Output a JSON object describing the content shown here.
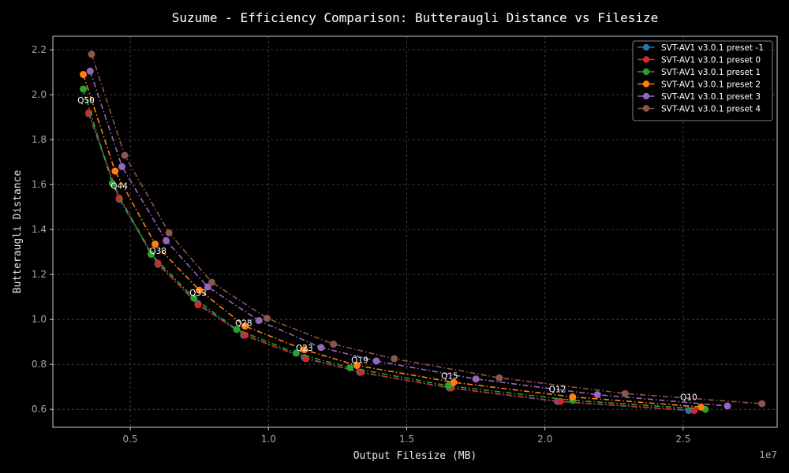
{
  "chart_data": {
    "type": "line",
    "title": "Suzume - Efficiency Comparison: Butteraugli Distance vs Filesize",
    "xlabel": "Output Filesize (MB)",
    "ylabel": "Butteraugli Distance",
    "x_offset_label": "1e7",
    "xlim": [
      2200000,
      28400000
    ],
    "ylim": [
      0.52,
      2.26
    ],
    "xticks": [
      5000000,
      10000000,
      15000000,
      20000000,
      25000000
    ],
    "xtick_labels": [
      "0.5",
      "1.0",
      "1.5",
      "2.0",
      "2.5"
    ],
    "yticks": [
      0.6,
      0.8,
      1.0,
      1.2,
      1.4,
      1.6,
      1.8,
      2.0,
      2.2
    ],
    "ytick_labels": [
      "0.6",
      "0.8",
      "1.0",
      "1.2",
      "1.4",
      "1.6",
      "1.8",
      "2.0",
      "2.2"
    ],
    "grid": true,
    "legend_position": "top-right",
    "series": [
      {
        "name": "SVT-AV1 v3.0.1 preset -1",
        "color": "#1f77b4",
        "x": [
          3500000,
          4600000,
          6000000,
          7450000,
          9100000,
          11300000,
          13300000,
          16550000,
          20450000,
          25200000
        ],
        "y": [
          1.915,
          1.535,
          1.245,
          1.07,
          0.93,
          0.83,
          0.765,
          0.695,
          0.635,
          0.595
        ]
      },
      {
        "name": "SVT-AV1 v3.0.1 preset 0",
        "color": "#d62728",
        "x": [
          3500000,
          4600000,
          6000000,
          7450000,
          9150000,
          11350000,
          13350000,
          16600000,
          20550000,
          25400000
        ],
        "y": [
          1.92,
          1.54,
          1.25,
          1.065,
          0.93,
          0.825,
          0.765,
          0.695,
          0.635,
          0.595
        ]
      },
      {
        "name": "SVT-AV1 v3.0.1 preset 1",
        "color": "#2ca02c",
        "x": [
          3300000,
          4350000,
          5750000,
          7300000,
          8850000,
          11000000,
          12950000,
          16500000,
          21000000,
          25800000
        ],
        "y": [
          2.025,
          1.605,
          1.29,
          1.095,
          0.955,
          0.85,
          0.785,
          0.705,
          0.64,
          0.6
        ]
      },
      {
        "name": "SVT-AV1 v3.0.1 preset 2",
        "color": "#ff7f0e",
        "x": [
          3300000,
          4450000,
          5900000,
          7500000,
          9150000,
          11300000,
          13200000,
          16700000,
          21000000,
          25650000
        ],
        "y": [
          2.09,
          1.66,
          1.335,
          1.13,
          0.97,
          0.865,
          0.795,
          0.72,
          0.655,
          0.61
        ]
      },
      {
        "name": "SVT-AV1 v3.0.1 preset 3",
        "color": "#9467bd",
        "x": [
          3550000,
          4700000,
          6300000,
          7800000,
          9650000,
          11900000,
          13900000,
          17500000,
          21900000,
          26600000
        ],
        "y": [
          2.105,
          1.68,
          1.35,
          1.145,
          0.995,
          0.875,
          0.815,
          0.735,
          0.665,
          0.615
        ]
      },
      {
        "name": "SVT-AV1 v3.0.1 preset 4",
        "color": "#8c564b",
        "x": [
          3600000,
          4800000,
          6400000,
          7950000,
          9950000,
          12350000,
          14550000,
          18350000,
          22900000,
          27850000
        ],
        "y": [
          2.18,
          1.73,
          1.385,
          1.165,
          1.005,
          0.89,
          0.825,
          0.74,
          0.67,
          0.625
        ]
      }
    ],
    "annotations": [
      {
        "text": "Q50",
        "x": 3400000,
        "y": 1.975
      },
      {
        "text": "Q44",
        "x": 4600000,
        "y": 1.595
      },
      {
        "text": "Q38",
        "x": 6000000,
        "y": 1.305
      },
      {
        "text": "Q33",
        "x": 7450000,
        "y": 1.12
      },
      {
        "text": "Q28",
        "x": 9100000,
        "y": 0.985
      },
      {
        "text": "Q23",
        "x": 11300000,
        "y": 0.875
      },
      {
        "text": "Q19",
        "x": 13300000,
        "y": 0.82
      },
      {
        "text": "Q15",
        "x": 16550000,
        "y": 0.75
      },
      {
        "text": "Q12",
        "x": 20450000,
        "y": 0.69
      },
      {
        "text": "Q10",
        "x": 25200000,
        "y": 0.655
      }
    ]
  }
}
